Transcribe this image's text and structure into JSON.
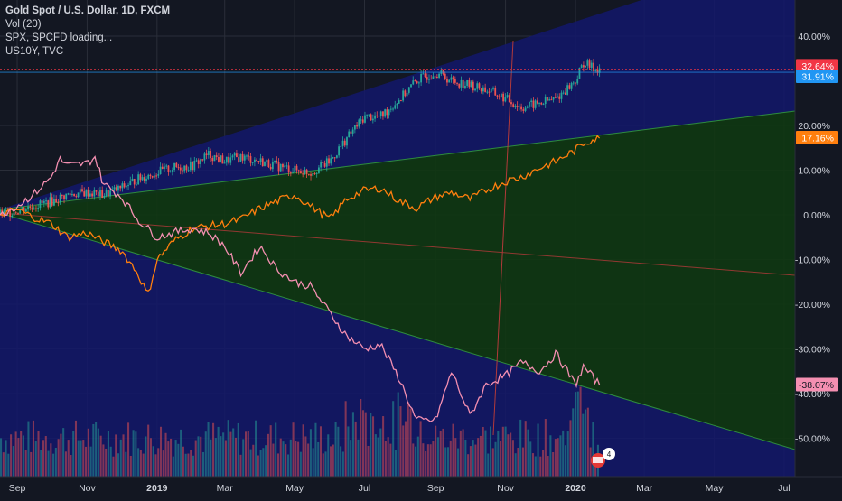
{
  "legend": {
    "title": "Gold Spot / U.S. Dollar, 1D, FXCM",
    "vol": "Vol (20)",
    "spx": "SPX, SPCFD loading...",
    "us10y": "US10Y, TVC"
  },
  "colors": {
    "background": "#131722",
    "grid": "#2a2e39",
    "gold_up": "#26a69a",
    "gold_down": "#ef5350",
    "spx_line": "#ff7f0e",
    "us10y_line": "#f48fb1",
    "channel_fill": "#13176b",
    "wedge_fill": "#103712",
    "green_line": "#2e8b3e",
    "label_red": "#f23645",
    "label_blue": "#2196f3",
    "label_orange": "#ff7f0e",
    "label_pink": "#f48fb1"
  },
  "chart_data": {
    "type": "line",
    "title": "Gold Spot / U.S. Dollar, 1D, FXCM",
    "xlabel": "",
    "ylabel": "",
    "x_ticks": [
      "Sep",
      "Nov",
      "2019",
      "Mar",
      "May",
      "Jul",
      "Sep",
      "Nov",
      "2020",
      "Mar",
      "May",
      "Jul"
    ],
    "y_ticks": [
      "40.00%",
      "20.00%",
      "10.00%",
      "0.00%",
      "-10.00%",
      "-20.00%",
      "-30.00%",
      "-40.00%",
      "-50.00%"
    ],
    "ylim": [
      -57,
      48
    ],
    "scale": "percent",
    "grid": true,
    "series": [
      {
        "name": "Gold Spot / U.S. Dollar",
        "style": "candles",
        "x": [
          "2018-08-17",
          "2018-09-01",
          "2018-09-15",
          "2018-10-01",
          "2018-10-15",
          "2018-11-01",
          "2018-11-15",
          "2018-12-01",
          "2018-12-15",
          "2019-01-01",
          "2019-01-15",
          "2019-02-01",
          "2019-02-15",
          "2019-03-01",
          "2019-03-15",
          "2019-04-01",
          "2019-04-15",
          "2019-05-01",
          "2019-05-15",
          "2019-06-01",
          "2019-06-15",
          "2019-07-01",
          "2019-07-15",
          "2019-08-01",
          "2019-08-15",
          "2019-09-01",
          "2019-09-15",
          "2019-10-01",
          "2019-10-15",
          "2019-11-01",
          "2019-11-15",
          "2019-12-01",
          "2019-12-15",
          "2020-01-01",
          "2020-01-08",
          "2020-01-15",
          "2020-01-22"
        ],
        "values": [
          0,
          1,
          2,
          3,
          4.5,
          5,
          4.5,
          6,
          8,
          9.5,
          10.5,
          11,
          13.5,
          12,
          13,
          12,
          11,
          10,
          9.5,
          12,
          17,
          22,
          22,
          26,
          30,
          32,
          30,
          29,
          28,
          26,
          24,
          25,
          26,
          30,
          34,
          33,
          32.6
        ]
      },
      {
        "name": "SPX",
        "x": [
          "2018-08-17",
          "2018-09-01",
          "2018-09-15",
          "2018-10-01",
          "2018-10-15",
          "2018-11-01",
          "2018-11-15",
          "2018-12-01",
          "2018-12-15",
          "2018-12-24",
          "2019-01-01",
          "2019-01-15",
          "2019-02-01",
          "2019-02-15",
          "2019-03-01",
          "2019-03-15",
          "2019-04-01",
          "2019-04-15",
          "2019-05-01",
          "2019-05-15",
          "2019-06-01",
          "2019-06-15",
          "2019-07-01",
          "2019-07-15",
          "2019-08-01",
          "2019-08-15",
          "2019-09-01",
          "2019-09-15",
          "2019-10-01",
          "2019-10-15",
          "2019-11-01",
          "2019-11-15",
          "2019-12-01",
          "2019-12-15",
          "2020-01-01",
          "2020-01-08",
          "2020-01-15",
          "2020-01-22"
        ],
        "values": [
          0,
          1.2,
          -0.5,
          -2,
          -5,
          -4,
          -6,
          -8,
          -13,
          -18,
          -10,
          -6,
          -3,
          -2.5,
          -2,
          -1,
          1.5,
          3,
          4.5,
          2,
          -1,
          3.5,
          5.5,
          6,
          3,
          1.5,
          4,
          5,
          3.5,
          5.5,
          7.5,
          8.5,
          10.5,
          12,
          14.5,
          16,
          16.8,
          17.16
        ]
      },
      {
        "name": "US10Y",
        "x": [
          "2018-08-17",
          "2018-09-01",
          "2018-09-15",
          "2018-10-01",
          "2018-10-08",
          "2018-10-15",
          "2018-11-01",
          "2018-11-08",
          "2018-11-15",
          "2018-12-01",
          "2018-12-15",
          "2019-01-01",
          "2019-01-15",
          "2019-02-01",
          "2019-02-15",
          "2019-03-01",
          "2019-03-15",
          "2019-04-01",
          "2019-04-15",
          "2019-05-01",
          "2019-05-15",
          "2019-06-01",
          "2019-06-15",
          "2019-07-01",
          "2019-07-15",
          "2019-08-01",
          "2019-08-15",
          "2019-09-01",
          "2019-09-15",
          "2019-10-01",
          "2019-10-15",
          "2019-11-01",
          "2019-11-15",
          "2019-12-01",
          "2019-12-15",
          "2020-01-01",
          "2020-01-08",
          "2020-01-15",
          "2020-01-22"
        ],
        "values": [
          0,
          2,
          4.5,
          8.5,
          12.5,
          11,
          11.5,
          13,
          7,
          4,
          -1,
          -5,
          -4,
          -3,
          -4,
          -7,
          -13,
          -7,
          -12,
          -15,
          -16,
          -22,
          -27,
          -30,
          -29,
          -37,
          -46,
          -46,
          -35,
          -45,
          -38,
          -36,
          -33,
          -35,
          -31,
          -38,
          -34,
          -36,
          -38.07
        ]
      }
    ],
    "price_labels": [
      {
        "text": "32.64%",
        "value": 32.64
      },
      {
        "text": "31.91%",
        "value": 31.91
      },
      {
        "text": "17.16%",
        "value": 17.16
      },
      {
        "text": "-38.07%",
        "value": -38.07
      }
    ],
    "volume": {
      "name": "Vol (20)",
      "bars": 240
    }
  }
}
